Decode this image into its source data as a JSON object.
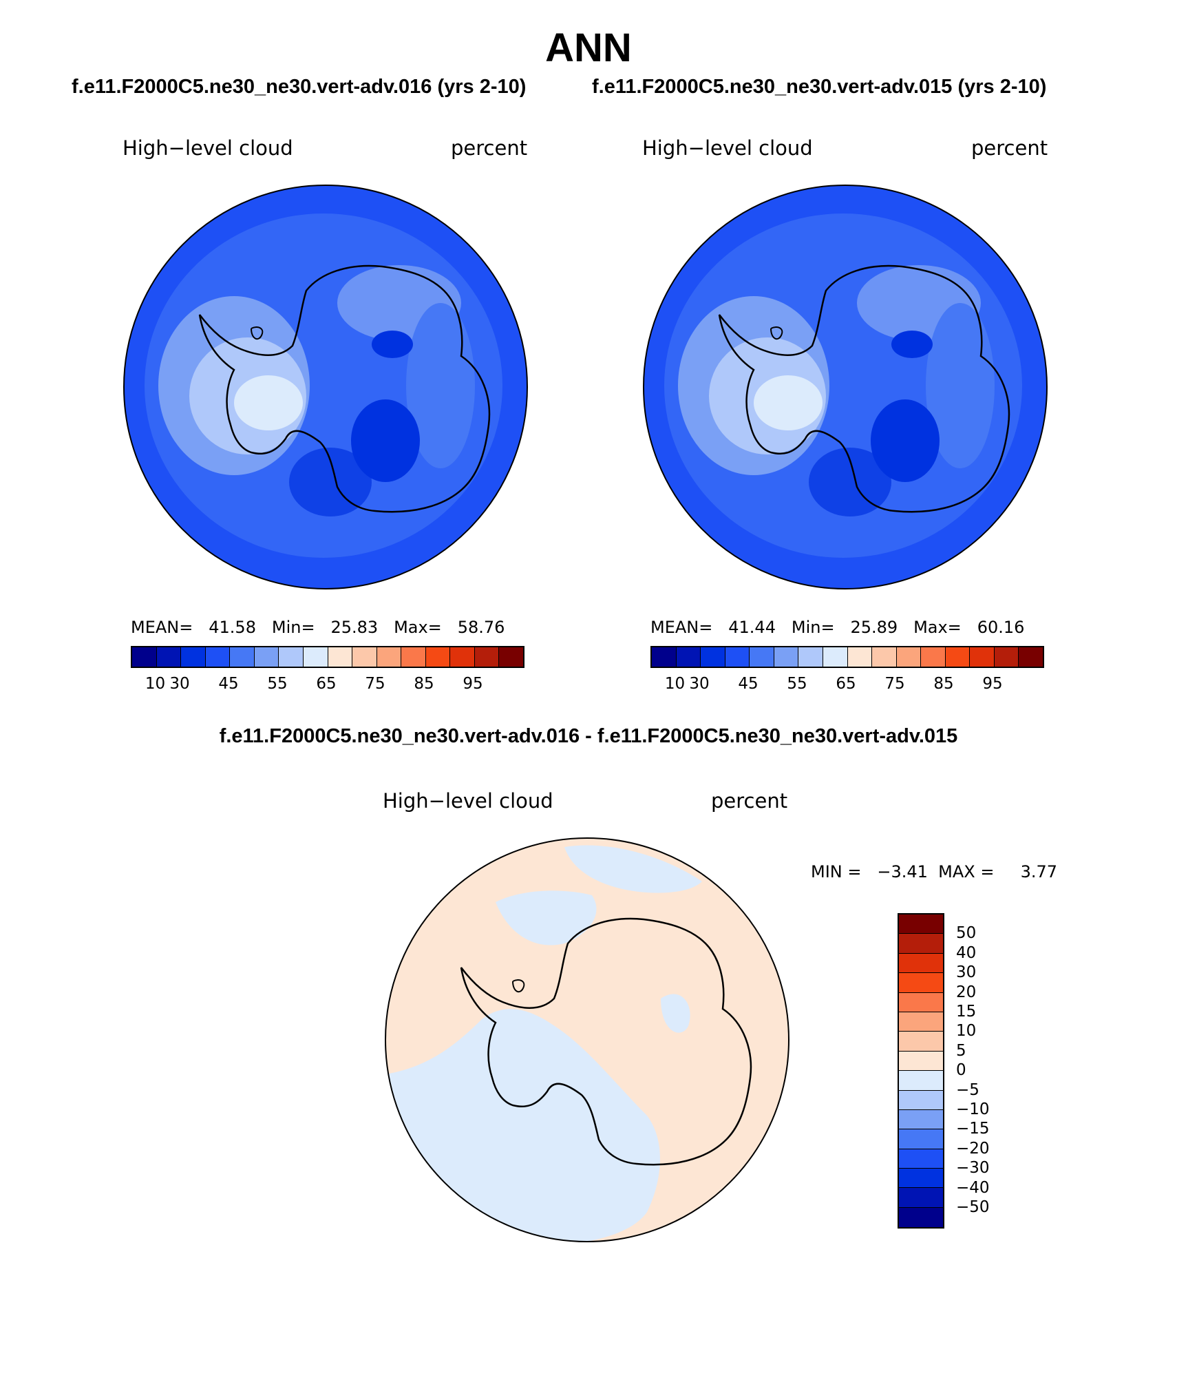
{
  "page_title": "ANN",
  "panels": [
    {
      "case_title": "f.e11.F2000C5.ne30_ne30.vert-adv.016 (yrs 2-10)",
      "variable": "High−level cloud",
      "units": "percent",
      "stats": {
        "mean_label": "MEAN=",
        "mean": "41.58",
        "min_label": "Min=",
        "min": "25.83",
        "max_label": "Max=",
        "max": "58.76"
      }
    },
    {
      "case_title": "f.e11.F2000C5.ne30_ne30.vert-adv.015 (yrs 2-10)",
      "variable": "High−level cloud",
      "units": "percent",
      "stats": {
        "mean_label": "MEAN=",
        "mean": "41.44",
        "min_label": "Min=",
        "min": "25.89",
        "max_label": "Max=",
        "max": "60.16"
      }
    }
  ],
  "difference": {
    "title": "f.e11.F2000C5.ne30_ne30.vert-adv.016 - f.e11.F2000C5.ne30_ne30.vert-adv.015",
    "variable": "High−level cloud",
    "units": "percent",
    "minmax_text": "MIN =   −3.41  MAX =     3.77"
  },
  "colorbar_main": {
    "colors": [
      "#00008c",
      "#0014b4",
      "#0032e0",
      "#1e50f5",
      "#4678f5",
      "#7aa0f5",
      "#afc8fa",
      "#dcebfc",
      "#fde6d4",
      "#fcc8aa",
      "#fba57c",
      "#fa784a",
      "#f54a14",
      "#e0320a",
      "#b41e0a",
      "#780000"
    ],
    "labels": [
      "10",
      "30",
      "45",
      "55",
      "65",
      "75",
      "85",
      "95"
    ]
  },
  "colorbar_diff": {
    "colors": [
      "#780000",
      "#b41e0a",
      "#e0320a",
      "#f54a14",
      "#fa784a",
      "#fba57c",
      "#fcc8aa",
      "#fde6d4",
      "#dcebfc",
      "#afc8fa",
      "#7aa0f5",
      "#4678f5",
      "#1e50f5",
      "#0032e0",
      "#0014b4",
      "#00008c"
    ],
    "labels": [
      "50",
      "40",
      "30",
      "20",
      "15",
      "10",
      "5",
      "0",
      "−5",
      "−10",
      "−15",
      "−20",
      "−30",
      "−40",
      "−50"
    ]
  }
}
